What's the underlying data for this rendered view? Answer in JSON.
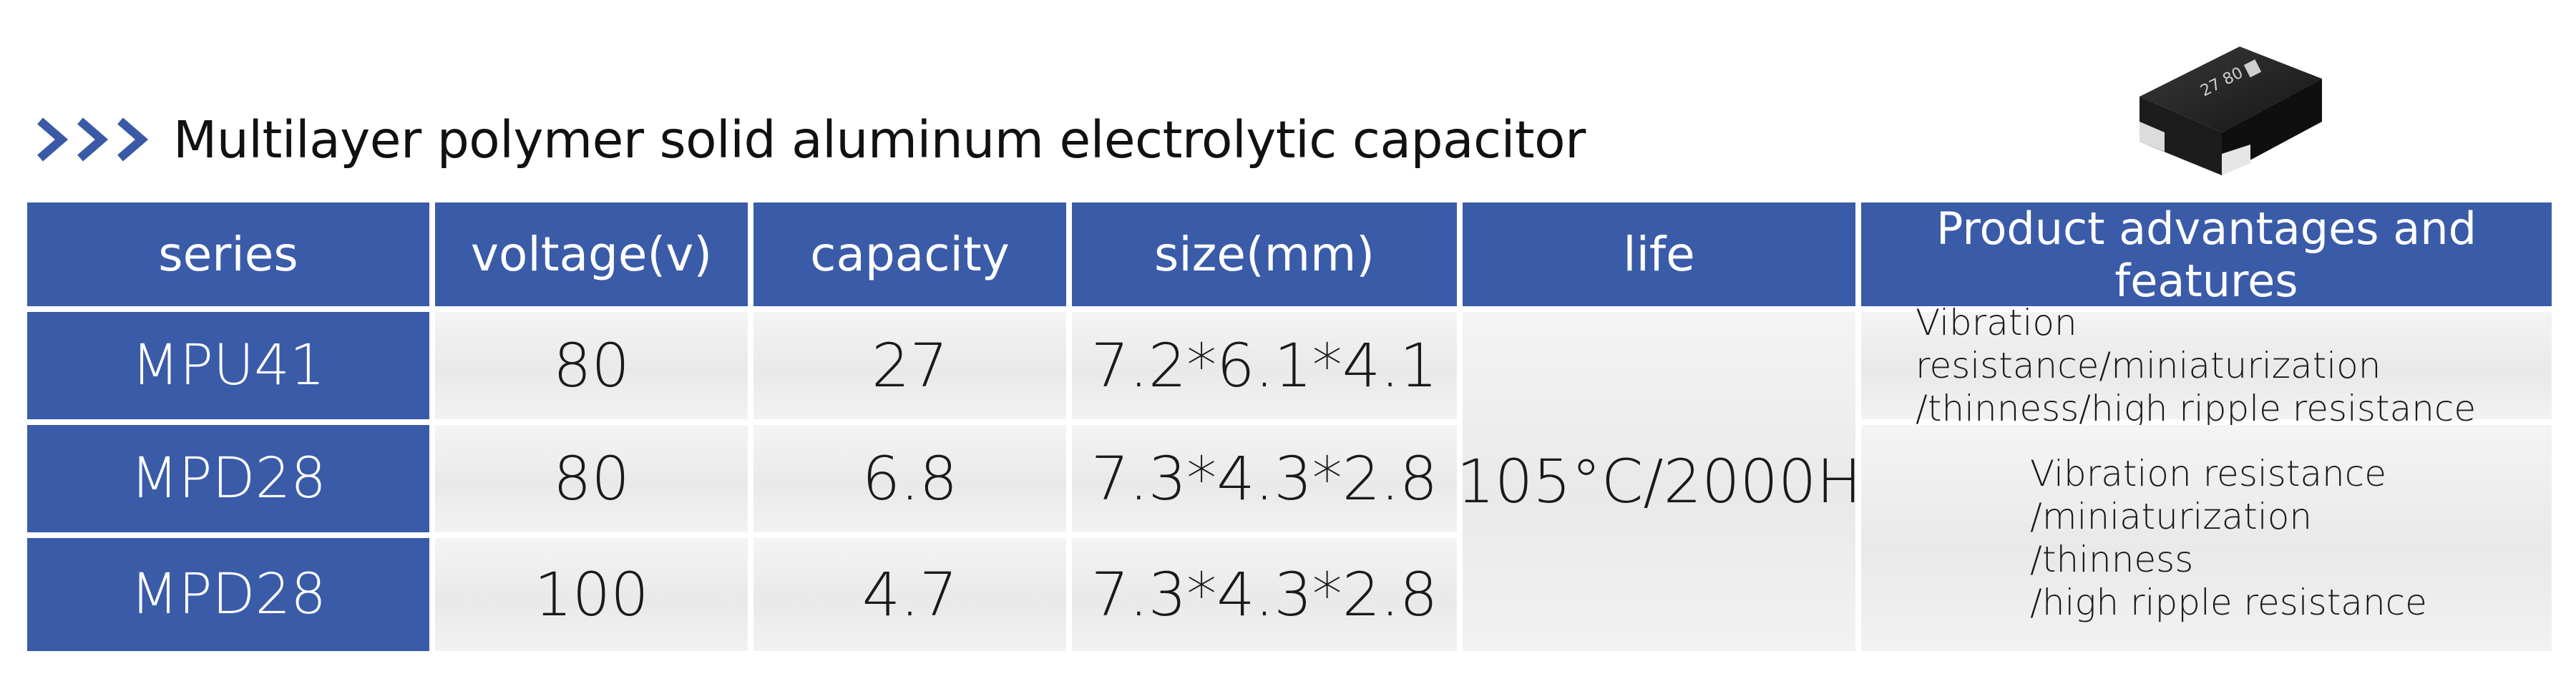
{
  "heading": {
    "icon": "chevrons-right-icon",
    "title": "Multilayer polymer solid aluminum electrolytic capacitor",
    "accent_color": "#3a5ba8"
  },
  "product_image": {
    "icon": "smd-capacitor-icon",
    "marking": "27 80"
  },
  "table": {
    "headers": [
      "series",
      "voltage(v)",
      "capacity",
      "size(mm)",
      "life",
      "Product advantages and features"
    ],
    "rows": [
      {
        "series": "MPU41",
        "voltage": "80",
        "capacity": "27",
        "size": "7.2*6.1*4.1"
      },
      {
        "series": "MPD28",
        "voltage": "80",
        "capacity": "6.8",
        "size": "7.3*4.3*2.8"
      },
      {
        "series": "MPD28",
        "voltage": "100",
        "capacity": "4.7",
        "size": "7.3*4.3*2.8"
      }
    ],
    "life": "105°C/2000H",
    "features": [
      [
        "Vibration resistance/miniaturization",
        "/thinness/high ripple resistance"
      ],
      [
        "Vibration resistance",
        "/miniaturization",
        "/thinness",
        "/high ripple resistance"
      ]
    ]
  }
}
